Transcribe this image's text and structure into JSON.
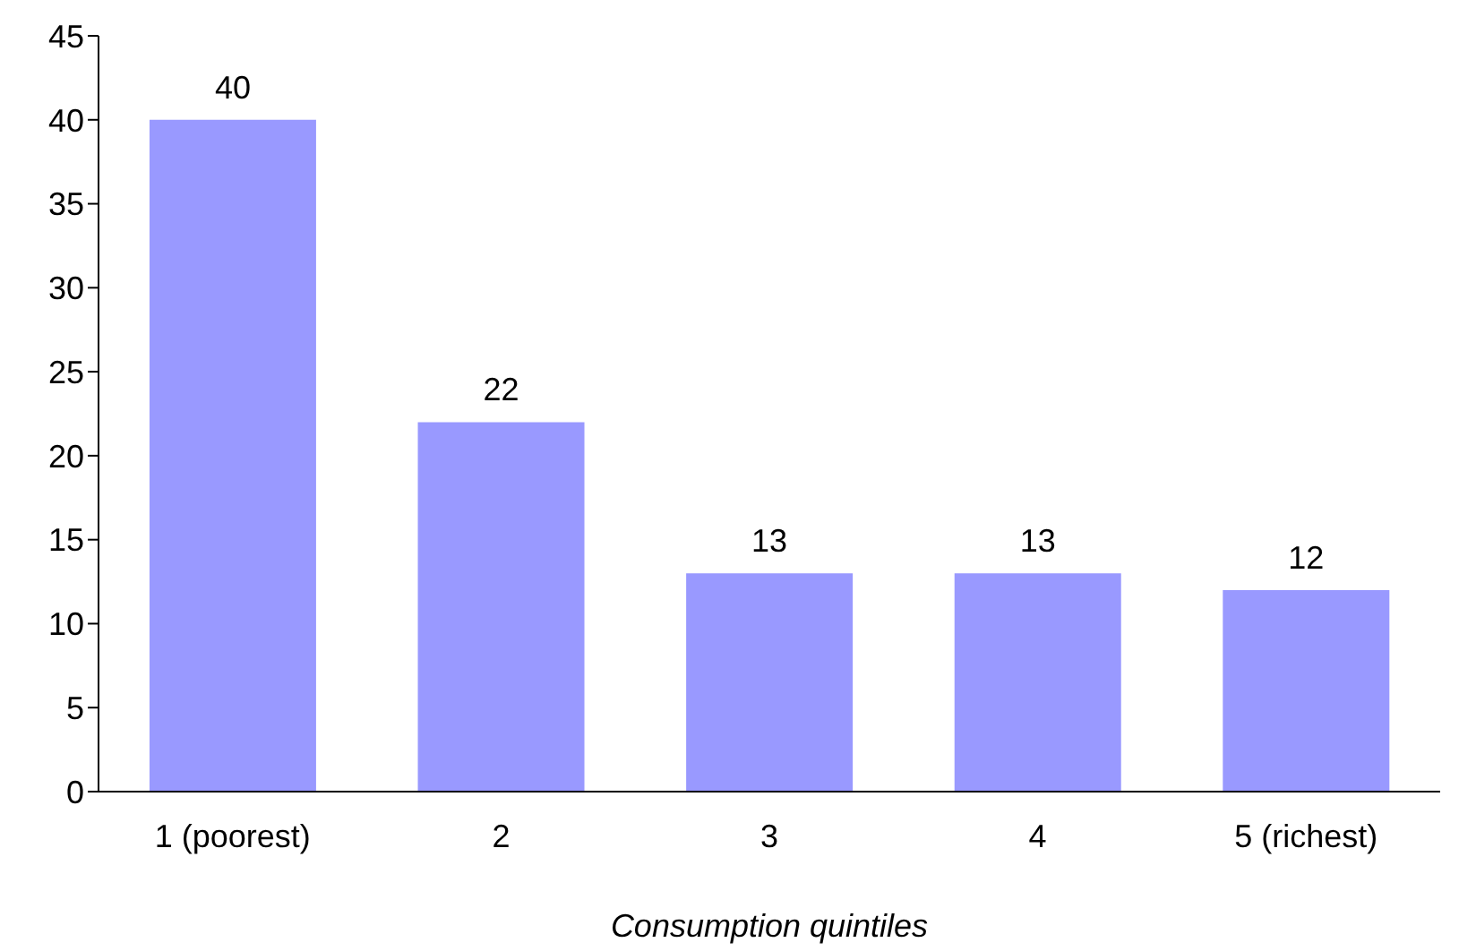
{
  "chart_data": {
    "type": "bar",
    "xlabel": "Consumption quintiles",
    "categories": [
      "1 (poorest)",
      "2",
      "3",
      "4",
      "5 (richest)"
    ],
    "values": [
      40,
      22,
      13,
      13,
      12
    ],
    "color": "#9999ff",
    "ylim": [
      0,
      45
    ],
    "yticks": [
      0,
      5,
      10,
      15,
      20,
      25,
      30,
      35,
      40,
      45
    ],
    "grid": false,
    "data_labels": true
  }
}
